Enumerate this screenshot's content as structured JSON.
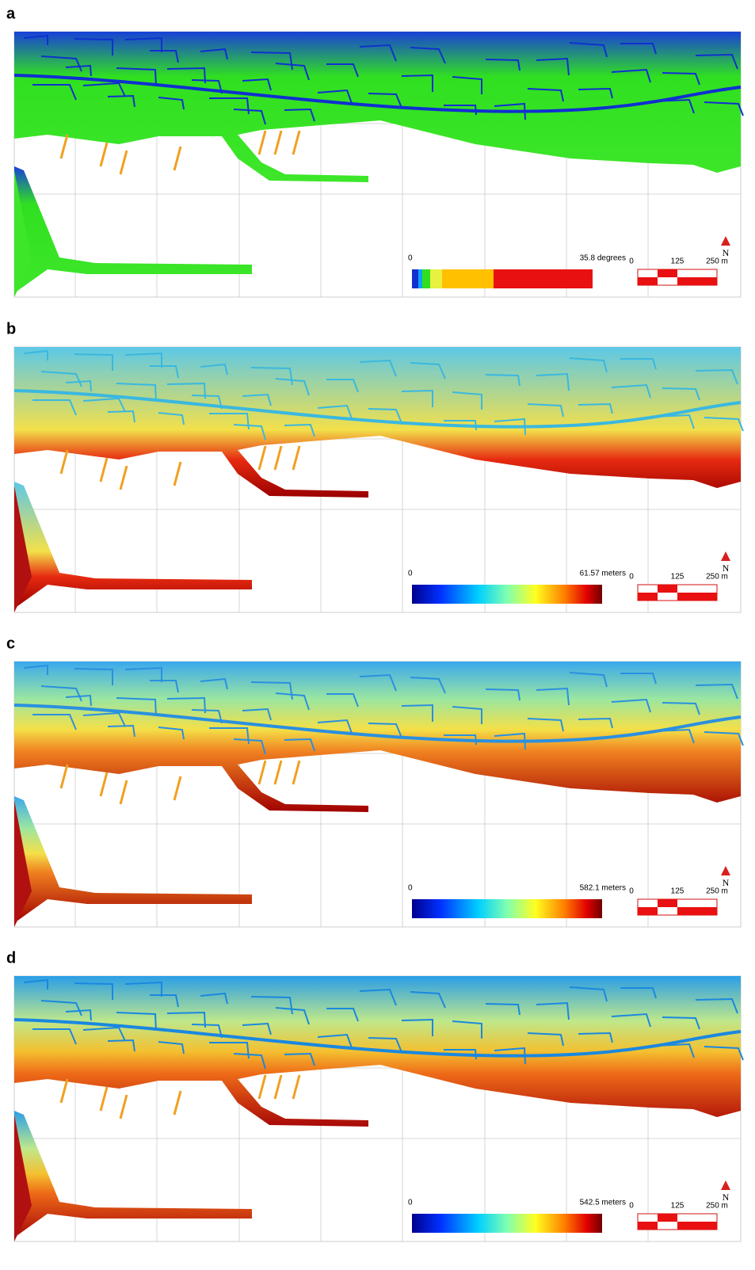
{
  "panels": [
    {
      "label": "a",
      "legend": {
        "min": "0",
        "max": "35.8 degrees"
      },
      "scale": [
        "0",
        "125",
        "250 m"
      ],
      "north": "N"
    },
    {
      "label": "b",
      "legend": {
        "min": "0",
        "max": "61.57 meters"
      },
      "scale": [
        "0",
        "125",
        "250 m"
      ],
      "north": "N"
    },
    {
      "label": "c",
      "legend": {
        "min": "0",
        "max": "582.1 meters"
      },
      "scale": [
        "0",
        "125",
        "250 m"
      ],
      "north": "N"
    },
    {
      "label": "d",
      "legend": {
        "min": "0",
        "max": "542.5 meters"
      },
      "scale": [
        "0",
        "125",
        "250 m"
      ],
      "north": "N"
    }
  ]
}
